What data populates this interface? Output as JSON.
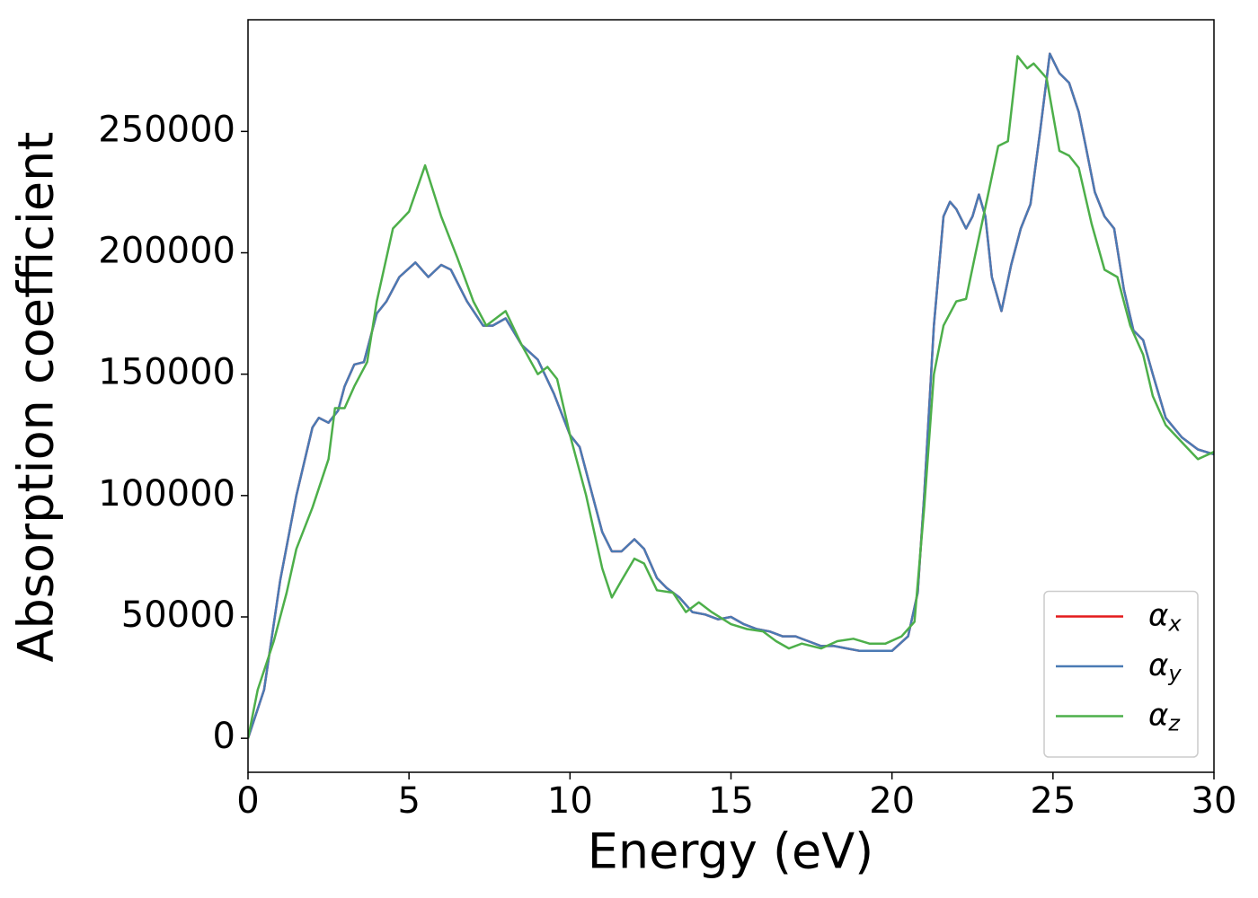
{
  "chart_data": {
    "type": "line",
    "xlabel": "Energy (eV)",
    "ylabel": "Absorption coefficient",
    "xlim": [
      0,
      30
    ],
    "xticks": [
      0,
      5,
      10,
      15,
      20,
      25,
      30
    ],
    "ylim": [
      -14000,
      296000
    ],
    "yticks": [
      0,
      50000,
      100000,
      150000,
      200000,
      250000
    ],
    "grid": false,
    "legend": "lower right",
    "series": [
      {
        "name": "αx",
        "color": "#e41a1c",
        "x": [
          0,
          0.5,
          1,
          1.5,
          2,
          2.2,
          2.5,
          2.8,
          3,
          3.3,
          3.6,
          4,
          4.3,
          4.7,
          5.2,
          5.6,
          6,
          6.3,
          6.8,
          7.3,
          7.6,
          8,
          8.5,
          9,
          9.5,
          10,
          10.3,
          10.7,
          11,
          11.3,
          11.6,
          12,
          12.3,
          12.7,
          13,
          13.4,
          13.8,
          14.2,
          14.6,
          15,
          15.4,
          15.8,
          16.2,
          16.6,
          17,
          17.4,
          17.8,
          18.2,
          18.6,
          19,
          19.5,
          20,
          20.5,
          20.8,
          21,
          21.3,
          21.6,
          21.8,
          22,
          22.3,
          22.5,
          22.7,
          22.9,
          23.1,
          23.4,
          23.7,
          24,
          24.3,
          24.6,
          24.9,
          25.2,
          25.5,
          25.8,
          26,
          26.3,
          26.6,
          26.9,
          27.2,
          27.5,
          27.8,
          28.1,
          28.5,
          29,
          29.5,
          30
        ],
        "values": [
          0,
          20000,
          65000,
          100000,
          128000,
          132000,
          130000,
          135000,
          145000,
          154000,
          155000,
          175000,
          180000,
          190000,
          196000,
          190000,
          195000,
          193000,
          180000,
          170000,
          170000,
          173000,
          162000,
          156000,
          142000,
          125000,
          120000,
          100000,
          85000,
          77000,
          77000,
          82000,
          78000,
          66000,
          62000,
          58000,
          52000,
          51000,
          49000,
          50000,
          47000,
          45000,
          44000,
          42000,
          42000,
          40000,
          38000,
          38000,
          37000,
          36000,
          36000,
          36000,
          42000,
          60000,
          100000,
          170000,
          215000,
          221000,
          218000,
          210000,
          215000,
          224000,
          215000,
          190000,
          176000,
          195000,
          210000,
          220000,
          250000,
          282000,
          274000,
          270000,
          258000,
          245000,
          225000,
          215000,
          210000,
          185000,
          168000,
          164000,
          150000,
          132000,
          124000,
          119000,
          117000
        ]
      },
      {
        "name": "αy",
        "color": "#4a7ab4",
        "x": [
          0,
          0.5,
          1,
          1.5,
          2,
          2.2,
          2.5,
          2.8,
          3,
          3.3,
          3.6,
          4,
          4.3,
          4.7,
          5.2,
          5.6,
          6,
          6.3,
          6.8,
          7.3,
          7.6,
          8,
          8.5,
          9,
          9.5,
          10,
          10.3,
          10.7,
          11,
          11.3,
          11.6,
          12,
          12.3,
          12.7,
          13,
          13.4,
          13.8,
          14.2,
          14.6,
          15,
          15.4,
          15.8,
          16.2,
          16.6,
          17,
          17.4,
          17.8,
          18.2,
          18.6,
          19,
          19.5,
          20,
          20.5,
          20.8,
          21,
          21.3,
          21.6,
          21.8,
          22,
          22.3,
          22.5,
          22.7,
          22.9,
          23.1,
          23.4,
          23.7,
          24,
          24.3,
          24.6,
          24.9,
          25.2,
          25.5,
          25.8,
          26,
          26.3,
          26.6,
          26.9,
          27.2,
          27.5,
          27.8,
          28.1,
          28.5,
          29,
          29.5,
          30
        ],
        "values": [
          0,
          20000,
          65000,
          100000,
          128000,
          132000,
          130000,
          135000,
          145000,
          154000,
          155000,
          175000,
          180000,
          190000,
          196000,
          190000,
          195000,
          193000,
          180000,
          170000,
          170000,
          173000,
          162000,
          156000,
          142000,
          125000,
          120000,
          100000,
          85000,
          77000,
          77000,
          82000,
          78000,
          66000,
          62000,
          58000,
          52000,
          51000,
          49000,
          50000,
          47000,
          45000,
          44000,
          42000,
          42000,
          40000,
          38000,
          38000,
          37000,
          36000,
          36000,
          36000,
          42000,
          60000,
          100000,
          170000,
          215000,
          221000,
          218000,
          210000,
          215000,
          224000,
          215000,
          190000,
          176000,
          195000,
          210000,
          220000,
          250000,
          282000,
          274000,
          270000,
          258000,
          245000,
          225000,
          215000,
          210000,
          185000,
          168000,
          164000,
          150000,
          132000,
          124000,
          119000,
          117000
        ]
      },
      {
        "name": "αz",
        "color": "#4daf4a",
        "x": [
          0,
          0.3,
          0.8,
          1.2,
          1.5,
          2,
          2.5,
          2.7,
          3,
          3.3,
          3.7,
          4,
          4.5,
          5,
          5.5,
          6,
          6.5,
          7,
          7.4,
          7.8,
          8,
          8.5,
          9,
          9.3,
          9.6,
          10,
          10.5,
          11,
          11.3,
          11.6,
          12,
          12.3,
          12.7,
          13.2,
          13.6,
          14,
          14.4,
          15,
          15.5,
          16,
          16.4,
          16.8,
          17.2,
          17.8,
          18.3,
          18.8,
          19.3,
          19.8,
          20.3,
          20.7,
          21,
          21.3,
          21.6,
          22,
          22.3,
          22.6,
          23,
          23.3,
          23.6,
          23.9,
          24.2,
          24.4,
          24.8,
          25.2,
          25.5,
          25.8,
          26.2,
          26.6,
          27,
          27.4,
          27.8,
          28.1,
          28.5,
          29,
          29.5,
          30
        ],
        "values": [
          0,
          20000,
          40000,
          60000,
          78000,
          95000,
          115000,
          136000,
          136000,
          145000,
          155000,
          180000,
          210000,
          217000,
          236000,
          215000,
          198000,
          180000,
          170000,
          174000,
          176000,
          162000,
          150000,
          153000,
          148000,
          125000,
          100000,
          70000,
          58000,
          65000,
          74000,
          72000,
          61000,
          60000,
          52000,
          56000,
          52000,
          47000,
          45000,
          44000,
          40000,
          37000,
          39000,
          37000,
          40000,
          41000,
          39000,
          39000,
          42000,
          48000,
          95000,
          150000,
          170000,
          180000,
          181000,
          200000,
          225000,
          244000,
          246000,
          281000,
          276000,
          278000,
          272000,
          242000,
          240000,
          235000,
          212000,
          193000,
          190000,
          170000,
          158000,
          141000,
          129000,
          122000,
          115000,
          118000
        ]
      }
    ]
  }
}
